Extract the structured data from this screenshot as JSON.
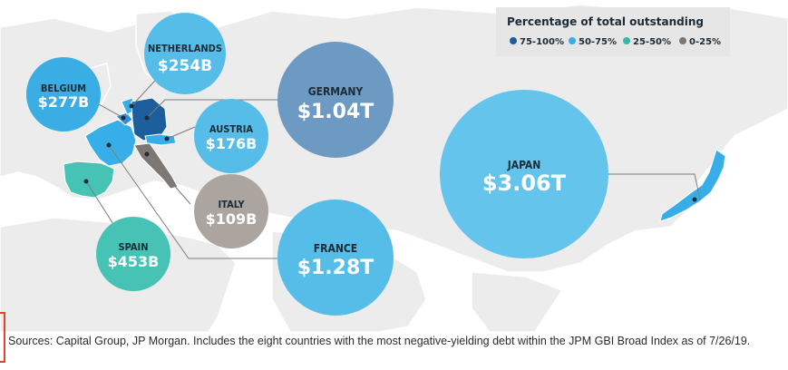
{
  "legend": {
    "title": "Percentage of total outstanding",
    "items": [
      {
        "label": "75-100%",
        "color": "#1b5e9b"
      },
      {
        "label": "50-75%",
        "color": "#38aee8"
      },
      {
        "label": "25-50%",
        "color": "#33b9a8"
      },
      {
        "label": "0-25%",
        "color": "#7d7773"
      }
    ]
  },
  "countries": [
    {
      "id": "netherlands",
      "name": "NETHERLANDS",
      "value": "$254B",
      "color": "#56bde9"
    },
    {
      "id": "belgium",
      "name": "BELGIUM",
      "value": "$277B",
      "color": "#3aaee4"
    },
    {
      "id": "germany",
      "name": "GERMANY",
      "value": "$1.04T",
      "color": "#6d9ac3"
    },
    {
      "id": "austria",
      "name": "AUSTRIA",
      "value": "$176B",
      "color": "#56bde9"
    },
    {
      "id": "japan",
      "name": "JAPAN",
      "value": "$3.06T",
      "color": "#64c4ec"
    },
    {
      "id": "italy",
      "name": "ITALY",
      "value": "$109B",
      "color": "#aba49f"
    },
    {
      "id": "spain",
      "name": "SPAIN",
      "value": "$453B",
      "color": "#46c3b5"
    },
    {
      "id": "france",
      "name": "FRANCE",
      "value": "$1.28T",
      "color": "#56bde9"
    }
  ],
  "footnote": "Sources: Capital Group, JP Morgan. Includes the eight countries with the most negative-yielding debt within the JPM GBI Broad Index as of 7/26/19."
}
